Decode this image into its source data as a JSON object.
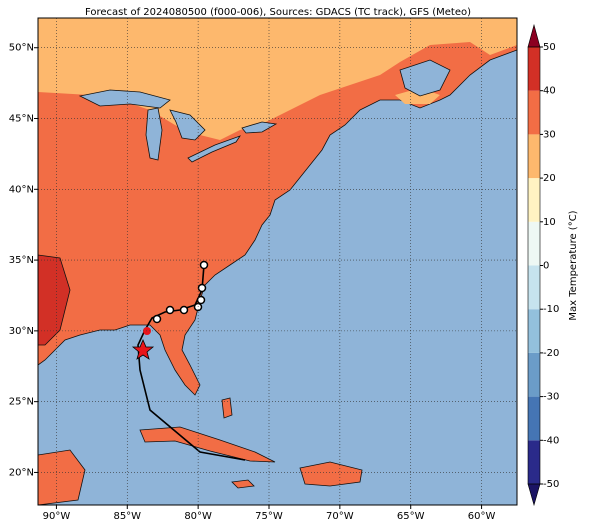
{
  "chart_data": {
    "type": "map",
    "title": "Forecast of 2024080500 (f000-006), Sources: GDACS (TC track), GFS (Meteo)",
    "xlim": [
      -91.3,
      -57.5
    ],
    "ylim": [
      17.7,
      52.1
    ],
    "xticks": [
      {
        "value": -90,
        "label": "90°W"
      },
      {
        "value": -85,
        "label": "85°W"
      },
      {
        "value": -80,
        "label": "80°W"
      },
      {
        "value": -75,
        "label": "75°W"
      },
      {
        "value": -70,
        "label": "70°W"
      },
      {
        "value": -65,
        "label": "65°W"
      },
      {
        "value": -60,
        "label": "60°W"
      }
    ],
    "yticks": [
      {
        "value": 20,
        "label": "20°N"
      },
      {
        "value": 25,
        "label": "25°N"
      },
      {
        "value": 30,
        "label": "30°N"
      },
      {
        "value": 35,
        "label": "35°N"
      },
      {
        "value": 40,
        "label": "40°N"
      },
      {
        "value": 45,
        "label": "45°N"
      },
      {
        "value": 50,
        "label": "50°N"
      }
    ],
    "grid": true,
    "colorbar": {
      "label": "Max Temperature (°C)",
      "clim": [
        -50,
        50
      ],
      "ticks": [
        -50,
        -40,
        -30,
        -20,
        -10,
        0,
        10,
        20,
        30,
        40,
        50
      ],
      "colors": [
        "#2a2a8a",
        "#4575b4",
        "#6b9cc8",
        "#93c0dc",
        "#c6e3ee",
        "#eef8f4",
        "#fff3c2",
        "#fdb86d",
        "#f26d45",
        "#d23026"
      ],
      "under_color": "#1b1464",
      "over_color": "#8b0021"
    }
  }
}
